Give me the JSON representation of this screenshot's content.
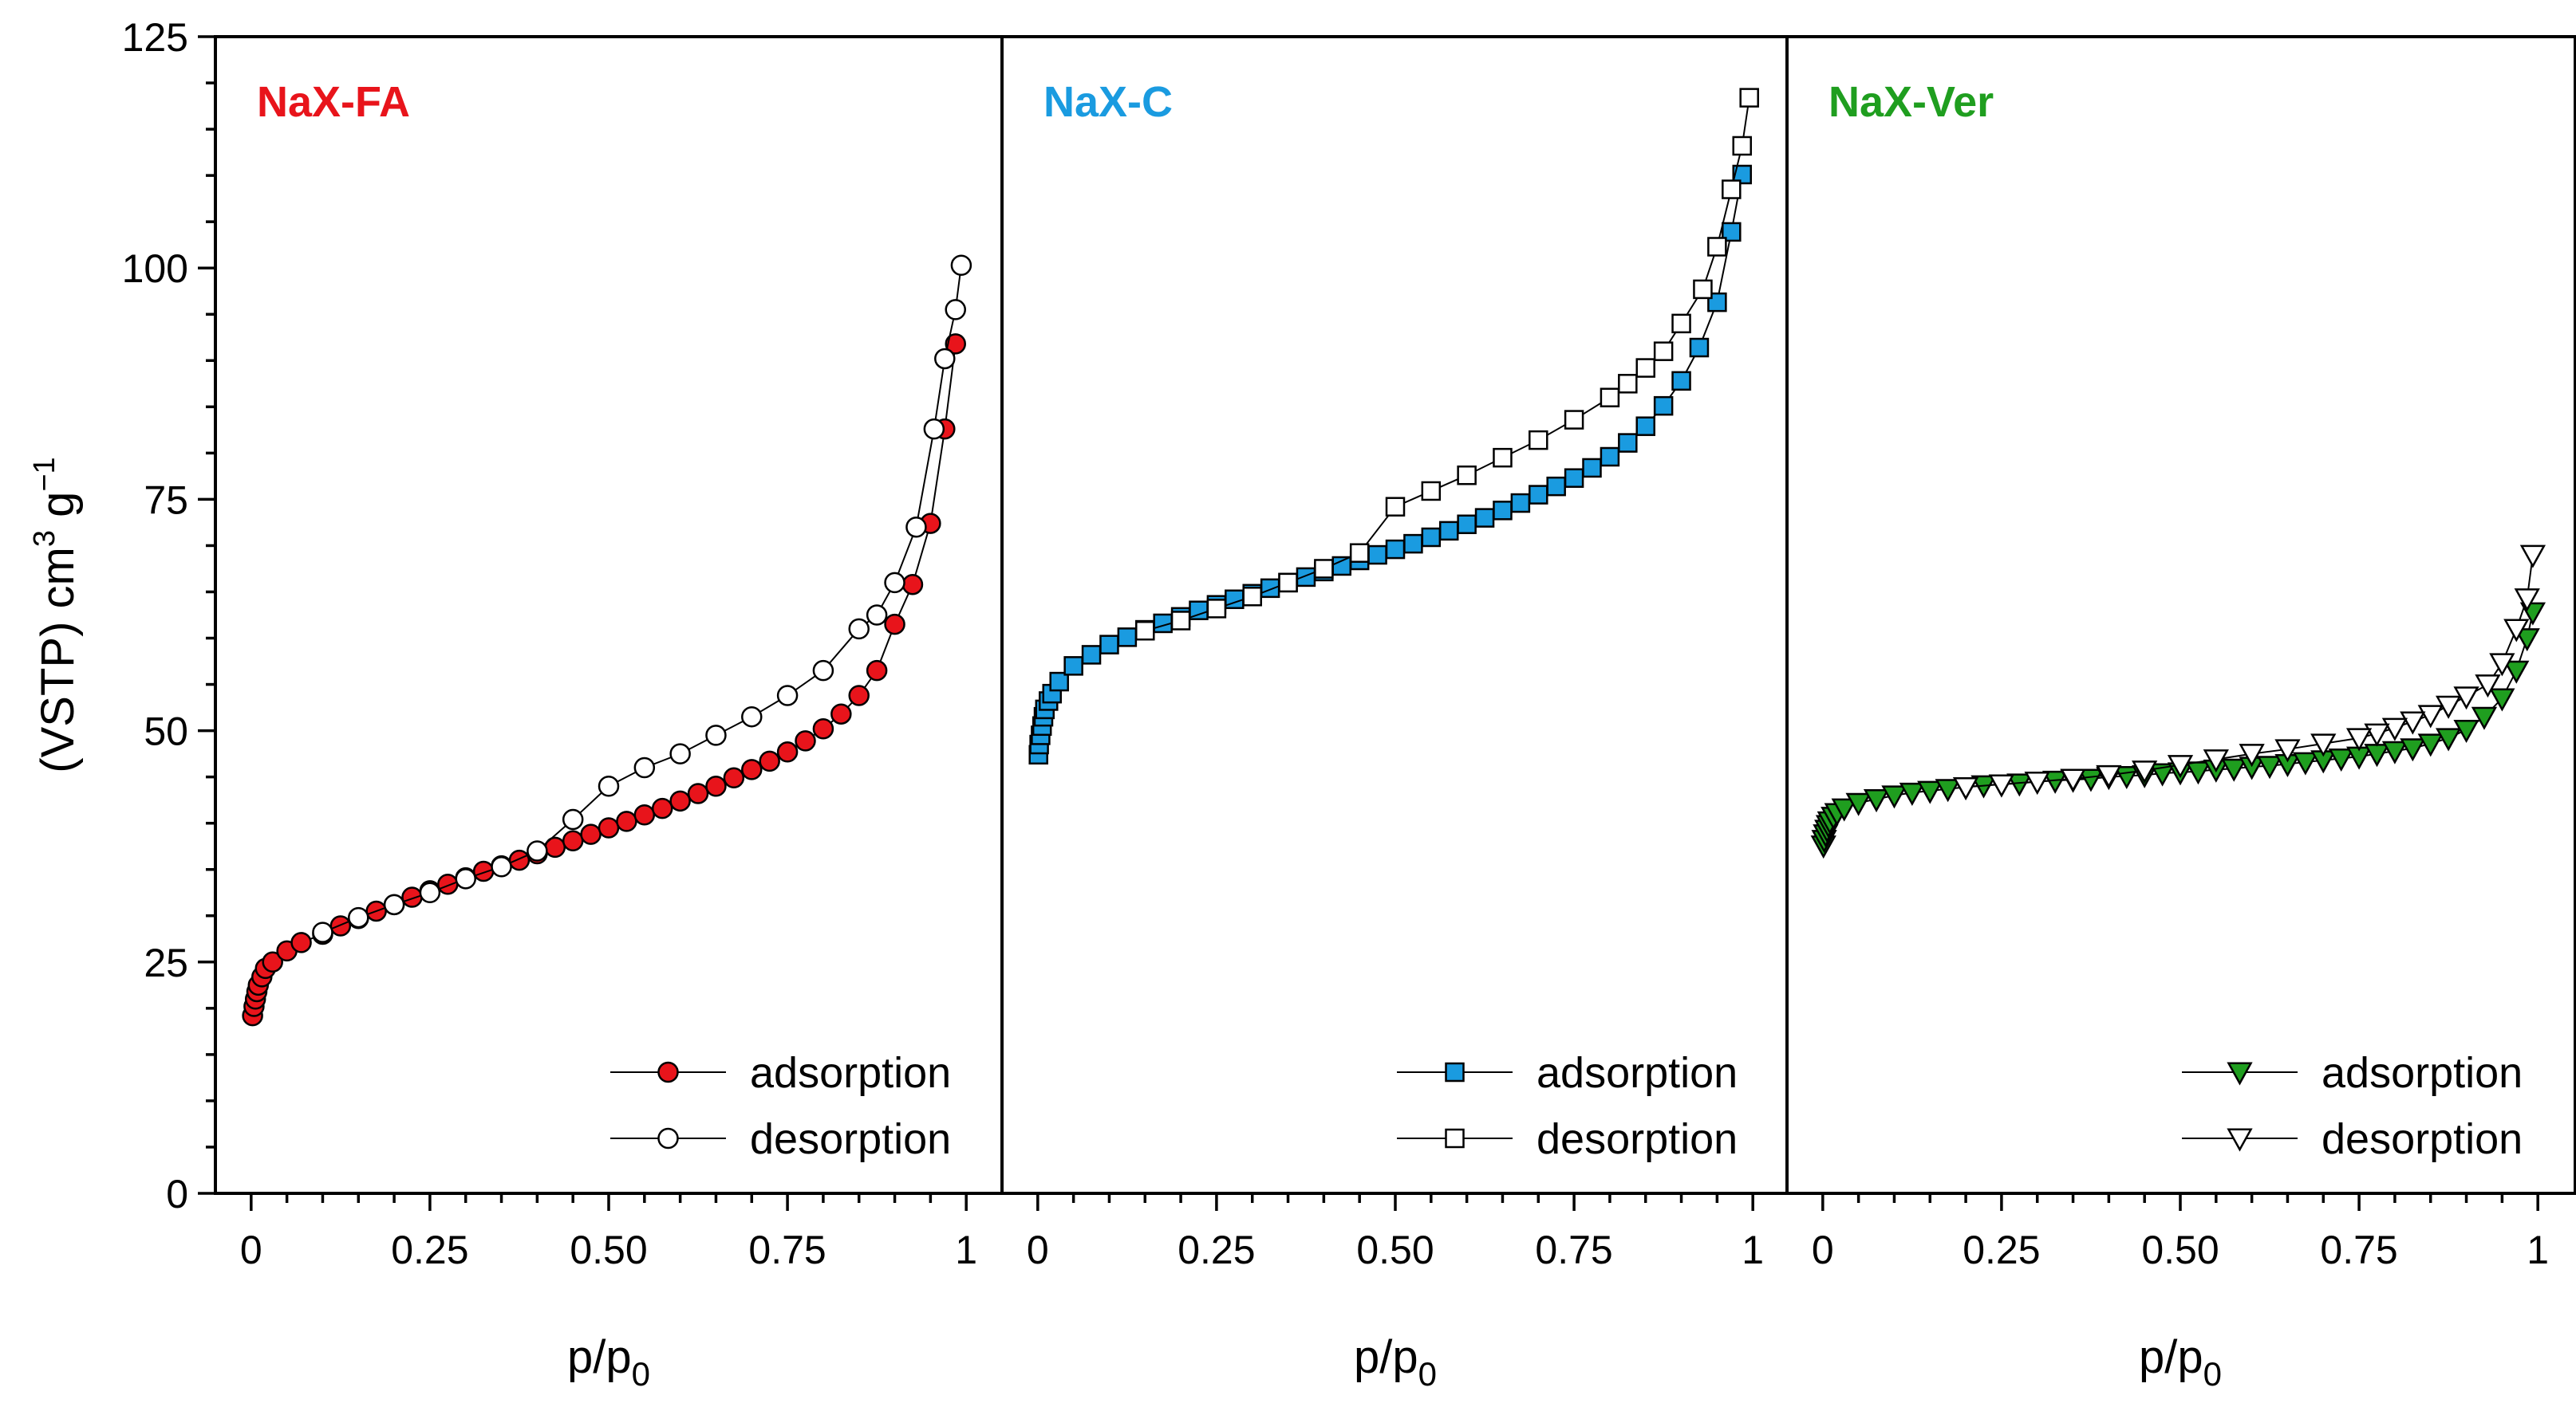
{
  "chart_data": {
    "type": "scatter",
    "layout": "three side-by-side panels sharing the y axis",
    "ylabel": "(VSTP) cm³ g⁻¹",
    "ylabel_parts": {
      "base": "(VSTP) cm",
      "sup1": "3",
      "mid": " g",
      "sup2": "−1"
    },
    "ylim": [
      0,
      125
    ],
    "yticks": [
      0,
      25,
      50,
      75,
      100,
      125
    ],
    "ytick_labels": [
      "0",
      "25",
      "50",
      "75",
      "100",
      "125"
    ],
    "xlim": [
      -0.05,
      1.05
    ],
    "xticks": [
      0,
      0.25,
      0.5,
      0.75,
      1
    ],
    "xtick_labels": [
      "0",
      "0.25",
      "0.50",
      "0.75",
      "1"
    ],
    "xlabel_parts": {
      "base": "p/p",
      "sub": "0"
    },
    "legend_position": "bottom-right",
    "panels": [
      {
        "label": "NaX-FA",
        "color": "#e8141b",
        "marker": "circle",
        "series": [
          {
            "name": "adsorption",
            "filled": true,
            "x": [
              0.002,
              0.004,
              0.006,
              0.008,
              0.01,
              0.015,
              0.02,
              0.03,
              0.05,
              0.07,
              0.1,
              0.125,
              0.15,
              0.175,
              0.2,
              0.225,
              0.25,
              0.275,
              0.3,
              0.325,
              0.35,
              0.375,
              0.4,
              0.425,
              0.45,
              0.475,
              0.5,
              0.525,
              0.55,
              0.575,
              0.6,
              0.625,
              0.65,
              0.675,
              0.7,
              0.725,
              0.75,
              0.775,
              0.8,
              0.825,
              0.85,
              0.875,
              0.9,
              0.925,
              0.95,
              0.97,
              0.985
            ],
            "y": [
              19.2,
              20.2,
              21.0,
              21.8,
              22.5,
              23.4,
              24.3,
              25.0,
              26.2,
              27.1,
              28.0,
              28.9,
              29.7,
              30.5,
              31.2,
              32.0,
              32.7,
              33.4,
              34.1,
              34.8,
              35.4,
              36.0,
              36.7,
              37.4,
              38.1,
              38.8,
              39.5,
              40.2,
              40.9,
              41.6,
              42.4,
              43.2,
              44.0,
              44.9,
              45.8,
              46.7,
              47.7,
              48.9,
              50.2,
              51.8,
              53.8,
              56.5,
              61.5,
              65.8,
              72.4,
              82.6,
              91.8
            ]
          },
          {
            "name": "desorption",
            "filled": false,
            "x": [
              0.993,
              0.985,
              0.97,
              0.955,
              0.93,
              0.9,
              0.875,
              0.85,
              0.8,
              0.75,
              0.7,
              0.65,
              0.6,
              0.55,
              0.5,
              0.45,
              0.4,
              0.35,
              0.3,
              0.25,
              0.2,
              0.15,
              0.1
            ],
            "y": [
              100.3,
              95.5,
              90.2,
              82.6,
              72.0,
              66.0,
              62.5,
              61.0,
              56.5,
              53.8,
              51.5,
              49.5,
              47.5,
              46.0,
              44.0,
              40.4,
              37.0,
              35.3,
              34.0,
              32.5,
              31.2,
              29.8,
              28.2
            ]
          }
        ]
      },
      {
        "label": "NaX-C",
        "color": "#1a9be0",
        "marker": "square",
        "series": [
          {
            "name": "adsorption",
            "filled": true,
            "x": [
              0.001,
              0.002,
              0.004,
              0.006,
              0.008,
              0.01,
              0.015,
              0.02,
              0.03,
              0.05,
              0.075,
              0.1,
              0.125,
              0.15,
              0.175,
              0.2,
              0.225,
              0.25,
              0.275,
              0.3,
              0.325,
              0.35,
              0.375,
              0.4,
              0.425,
              0.45,
              0.475,
              0.5,
              0.525,
              0.55,
              0.575,
              0.6,
              0.625,
              0.65,
              0.675,
              0.7,
              0.725,
              0.75,
              0.775,
              0.8,
              0.825,
              0.85,
              0.875,
              0.9,
              0.925,
              0.95,
              0.97,
              0.985
            ],
            "y": [
              47.4,
              48.5,
              49.5,
              50.5,
              51.5,
              52.3,
              53.2,
              54.0,
              55.3,
              57.0,
              58.2,
              59.3,
              60.1,
              60.9,
              61.6,
              62.3,
              63.0,
              63.6,
              64.2,
              64.8,
              65.4,
              66.0,
              66.6,
              67.2,
              67.8,
              68.4,
              69.0,
              69.6,
              70.2,
              70.9,
              71.6,
              72.3,
              73.0,
              73.8,
              74.6,
              75.5,
              76.4,
              77.3,
              78.4,
              79.6,
              81.1,
              82.9,
              85.1,
              87.8,
              91.4,
              96.3,
              103.9,
              110.1
            ]
          },
          {
            "name": "desorption",
            "filled": false,
            "x": [
              0.995,
              0.985,
              0.97,
              0.95,
              0.93,
              0.9,
              0.875,
              0.85,
              0.825,
              0.8,
              0.75,
              0.7,
              0.65,
              0.6,
              0.55,
              0.5,
              0.45,
              0.4,
              0.35,
              0.3,
              0.25,
              0.2,
              0.15
            ],
            "y": [
              118.4,
              113.2,
              108.5,
              102.3,
              97.7,
              94.0,
              91.0,
              89.2,
              87.5,
              86.0,
              83.6,
              81.4,
              79.5,
              77.6,
              75.9,
              74.2,
              69.2,
              67.5,
              66.0,
              64.5,
              63.2,
              61.9,
              60.8
            ]
          }
        ]
      },
      {
        "label": "NaX-Ver",
        "color": "#1f9e1f",
        "marker": "triangle-down",
        "series": [
          {
            "name": "adsorption",
            "filled": true,
            "x": [
              0.001,
              0.002,
              0.004,
              0.006,
              0.008,
              0.01,
              0.015,
              0.02,
              0.03,
              0.05,
              0.075,
              0.1,
              0.125,
              0.15,
              0.175,
              0.2,
              0.225,
              0.25,
              0.275,
              0.3,
              0.325,
              0.35,
              0.375,
              0.4,
              0.425,
              0.45,
              0.475,
              0.5,
              0.525,
              0.55,
              0.575,
              0.6,
              0.625,
              0.65,
              0.675,
              0.7,
              0.725,
              0.75,
              0.775,
              0.8,
              0.825,
              0.85,
              0.875,
              0.9,
              0.925,
              0.95,
              0.97,
              0.985,
              0.993
            ],
            "y": [
              37.6,
              38.2,
              38.8,
              39.3,
              39.8,
              40.2,
              40.7,
              41.1,
              41.6,
              42.2,
              42.6,
              43.0,
              43.3,
              43.5,
              43.7,
              43.9,
              44.1,
              44.2,
              44.3,
              44.5,
              44.6,
              44.7,
              44.8,
              45.0,
              45.1,
              45.2,
              45.4,
              45.5,
              45.6,
              45.8,
              45.9,
              46.1,
              46.2,
              46.4,
              46.6,
              46.8,
              47.0,
              47.2,
              47.5,
              47.8,
              48.1,
              48.6,
              49.2,
              50.1,
              51.5,
              53.5,
              56.5,
              60.0,
              62.8
            ]
          },
          {
            "name": "desorption",
            "filled": false,
            "x": [
              0.993,
              0.985,
              0.97,
              0.95,
              0.93,
              0.9,
              0.875,
              0.85,
              0.825,
              0.8,
              0.775,
              0.75,
              0.7,
              0.65,
              0.6,
              0.55,
              0.5,
              0.45,
              0.4,
              0.35,
              0.3,
              0.25,
              0.2
            ],
            "y": [
              69.0,
              64.3,
              61.0,
              57.3,
              55.0,
              53.7,
              52.7,
              51.7,
              51.0,
              50.3,
              49.7,
              49.2,
              48.6,
              48.0,
              47.5,
              46.9,
              46.3,
              45.7,
              45.2,
              44.8,
              44.5,
              44.2,
              43.9
            ]
          }
        ]
      }
    ]
  }
}
